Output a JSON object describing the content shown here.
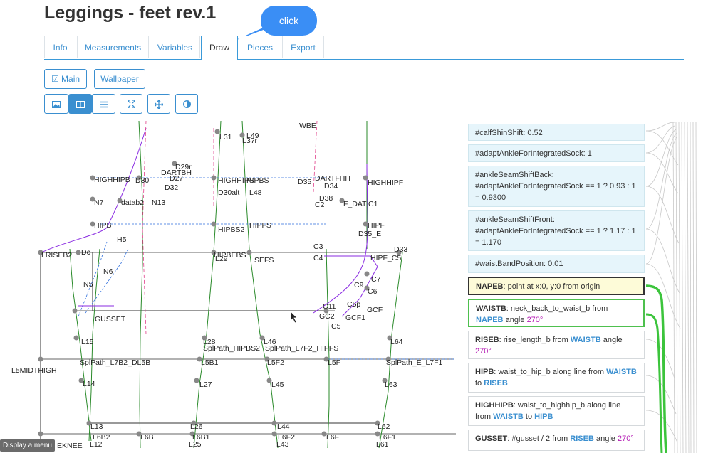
{
  "page_title": "Leggings - feet rev.1",
  "tooltip": "click",
  "tabs": [
    {
      "label": "Info"
    },
    {
      "label": "Measurements"
    },
    {
      "label": "Variables"
    },
    {
      "label": "Draw"
    },
    {
      "label": "Pieces"
    },
    {
      "label": "Export"
    }
  ],
  "toolbar": {
    "main_label": "Main",
    "wallpaper_label": "Wallpaper",
    "icons": [
      "image-icon",
      "split-view-icon",
      "list-icon",
      "expand-icon",
      "move-icon",
      "contrast-icon"
    ]
  },
  "canvas_labels": [
    "L31",
    "L49",
    "L3?r",
    "WBE",
    "D29r",
    "DARTBH",
    "D30",
    "HIGHHIPB",
    "D27",
    "D32",
    "HIGHHIPS",
    "HIPBS",
    "L48",
    "D30alt",
    "D35",
    "DARTFHH",
    "D34",
    "HIGHHIPF",
    "N7",
    "datab2",
    "N13",
    "D38",
    "F_DAT",
    "C1",
    "C2",
    "HIPF",
    "HIPB",
    "HIPBS2",
    "HIPFS",
    "H5",
    "D35_E",
    "D33",
    "LRISEB2",
    "Dc",
    "HIPBEBS",
    "SEFS",
    "L29",
    "HIPF_C5",
    "N5",
    "N6",
    "C7",
    "C6",
    "C9",
    "C11",
    "C5p",
    "GCF",
    "C5",
    "GUSSET",
    "L15",
    "L28",
    "L46",
    "L64",
    "L5MIDTHIGH",
    "SplPath_L7B2_DL5B",
    "L5B1",
    "L5F2",
    "L5F",
    "SplPath_E_L7F1",
    "SplPath_HIPBS2",
    "SplPath_L7F2_HIPFS",
    "L14",
    "L27",
    "L45",
    "L63",
    "L13",
    "L26",
    "L44",
    "L62",
    "L6B2",
    "L6B",
    "L6B1",
    "L6F2",
    "L6F",
    "L6F1",
    "L12",
    "L25",
    "L43",
    "L61",
    "EKNEE",
    "C4",
    "C3",
    "GC2",
    "GCF1"
  ],
  "formulas": [
    {
      "type": "var",
      "name": "#calfShinShift",
      "text": ": 0.52"
    },
    {
      "type": "var",
      "name": "#adaptAnkleForIntegratedSock",
      "text": ": 1"
    },
    {
      "type": "var",
      "name": "#ankleSeamShiftBack",
      "text": ": #adaptAnkleForIntegratedSock == 1 ? 0.93 : 1 = 0.9300"
    },
    {
      "type": "var",
      "name": "#ankleSeamShiftFront",
      "text": ": #adaptAnkleForIntegratedSock == 1 ? 1.17 : 1 = 1.170"
    },
    {
      "type": "var",
      "name": "#waistBandPosition",
      "text": ": 0.01"
    },
    {
      "type": "sel",
      "name": "NAPEB",
      "text": ": point at x:0, y:0 from origin"
    },
    {
      "type": "hl",
      "name": "WAISTB",
      "text": ": neck_back_to_waist_b from",
      "ref1": "NAPEB",
      "mid": "angle",
      "angle": "270°"
    },
    {
      "type": "pt",
      "name": "RISEB",
      "text": ": rise_length_b from",
      "ref1": "WAISTB",
      "mid": "angle",
      "angle": "270°"
    },
    {
      "type": "pt",
      "name": "HIPB",
      "text": ": waist_to_hip_b along line from",
      "ref1": "WAISTB",
      "mid": "to",
      "ref2": "RISEB"
    },
    {
      "type": "pt",
      "name": "HIGHHIPB",
      "text": ": waist_to_highhip_b along line from",
      "ref1": "WAISTB",
      "mid": "to",
      "ref2": "HIPB"
    },
    {
      "type": "pt",
      "name": "GUSSET",
      "text": ": #gusset / 2 from",
      "ref1": "RISEB",
      "mid": "angle",
      "angle": "270°"
    }
  ],
  "menu_hint": "Display a menu",
  "colors": {
    "accent": "#3a8fd0",
    "highlight": "#4ec04e",
    "selected_bg": "#fdfbd8",
    "var_bg": "#e6f5fb",
    "angle": "#b51eb5"
  }
}
